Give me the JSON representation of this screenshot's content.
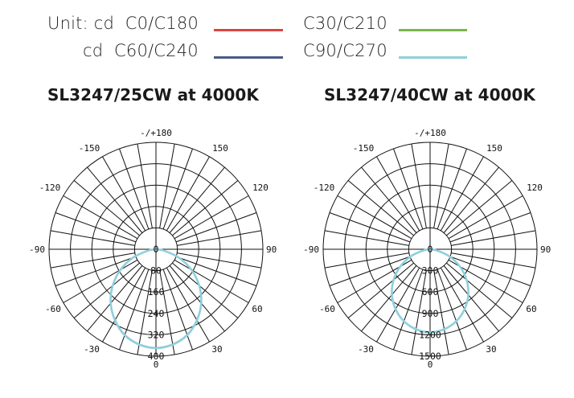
{
  "legend": {
    "unit_label": "Unit: cd",
    "unit_label_2": "cd",
    "entries": [
      {
        "name": "C0/C180",
        "color": "#d9453f"
      },
      {
        "name": "C30/C210",
        "color": "#7ab648"
      },
      {
        "name": "C60/C240",
        "color": "#4a5a86"
      },
      {
        "name": "C90/C270",
        "color": "#8fd0dc"
      }
    ]
  },
  "chart_data": [
    {
      "type": "polar",
      "title": "SL3247/25CW at 4000K",
      "unit": "cd",
      "angle_labels": [
        "-/+180",
        "-150",
        "150",
        "-120",
        "120",
        "-90",
        "90",
        "-60",
        "60",
        "-30",
        "30",
        "0"
      ],
      "radial_ticks": [
        0,
        80,
        160,
        240,
        320,
        400
      ],
      "rmax": 400,
      "series": [
        {
          "name": "C0/C180",
          "peak_cd": 368
        },
        {
          "name": "C30/C210",
          "peak_cd": 368
        },
        {
          "name": "C60/C240",
          "peak_cd": 368
        },
        {
          "name": "C90/C270",
          "peak_cd": 370
        }
      ],
      "curve_samples_deg": [
        0,
        10,
        20,
        30,
        40,
        50,
        60,
        70,
        80,
        90
      ],
      "curve_samples_cd": [
        368,
        360,
        340,
        305,
        262,
        210,
        152,
        90,
        30,
        0
      ]
    },
    {
      "type": "polar",
      "title": "SL3247/40CW at 4000K",
      "unit": "cd",
      "angle_labels": [
        "-/+180",
        "-150",
        "150",
        "-120",
        "120",
        "-90",
        "90",
        "-60",
        "60",
        "-30",
        "30",
        "0"
      ],
      "radial_ticks": [
        0,
        300,
        600,
        900,
        1200,
        1500
      ],
      "rmax": 1500,
      "series": [
        {
          "name": "C0/C180",
          "peak_cd": 1160
        },
        {
          "name": "C30/C210",
          "peak_cd": 1160
        },
        {
          "name": "C60/C240",
          "peak_cd": 1160
        },
        {
          "name": "C90/C270",
          "peak_cd": 1165
        }
      ],
      "curve_samples_deg": [
        0,
        10,
        20,
        30,
        40,
        50,
        60,
        70,
        80,
        90
      ],
      "curve_samples_cd": [
        1160,
        1135,
        1070,
        965,
        830,
        665,
        480,
        285,
        95,
        0
      ]
    }
  ]
}
